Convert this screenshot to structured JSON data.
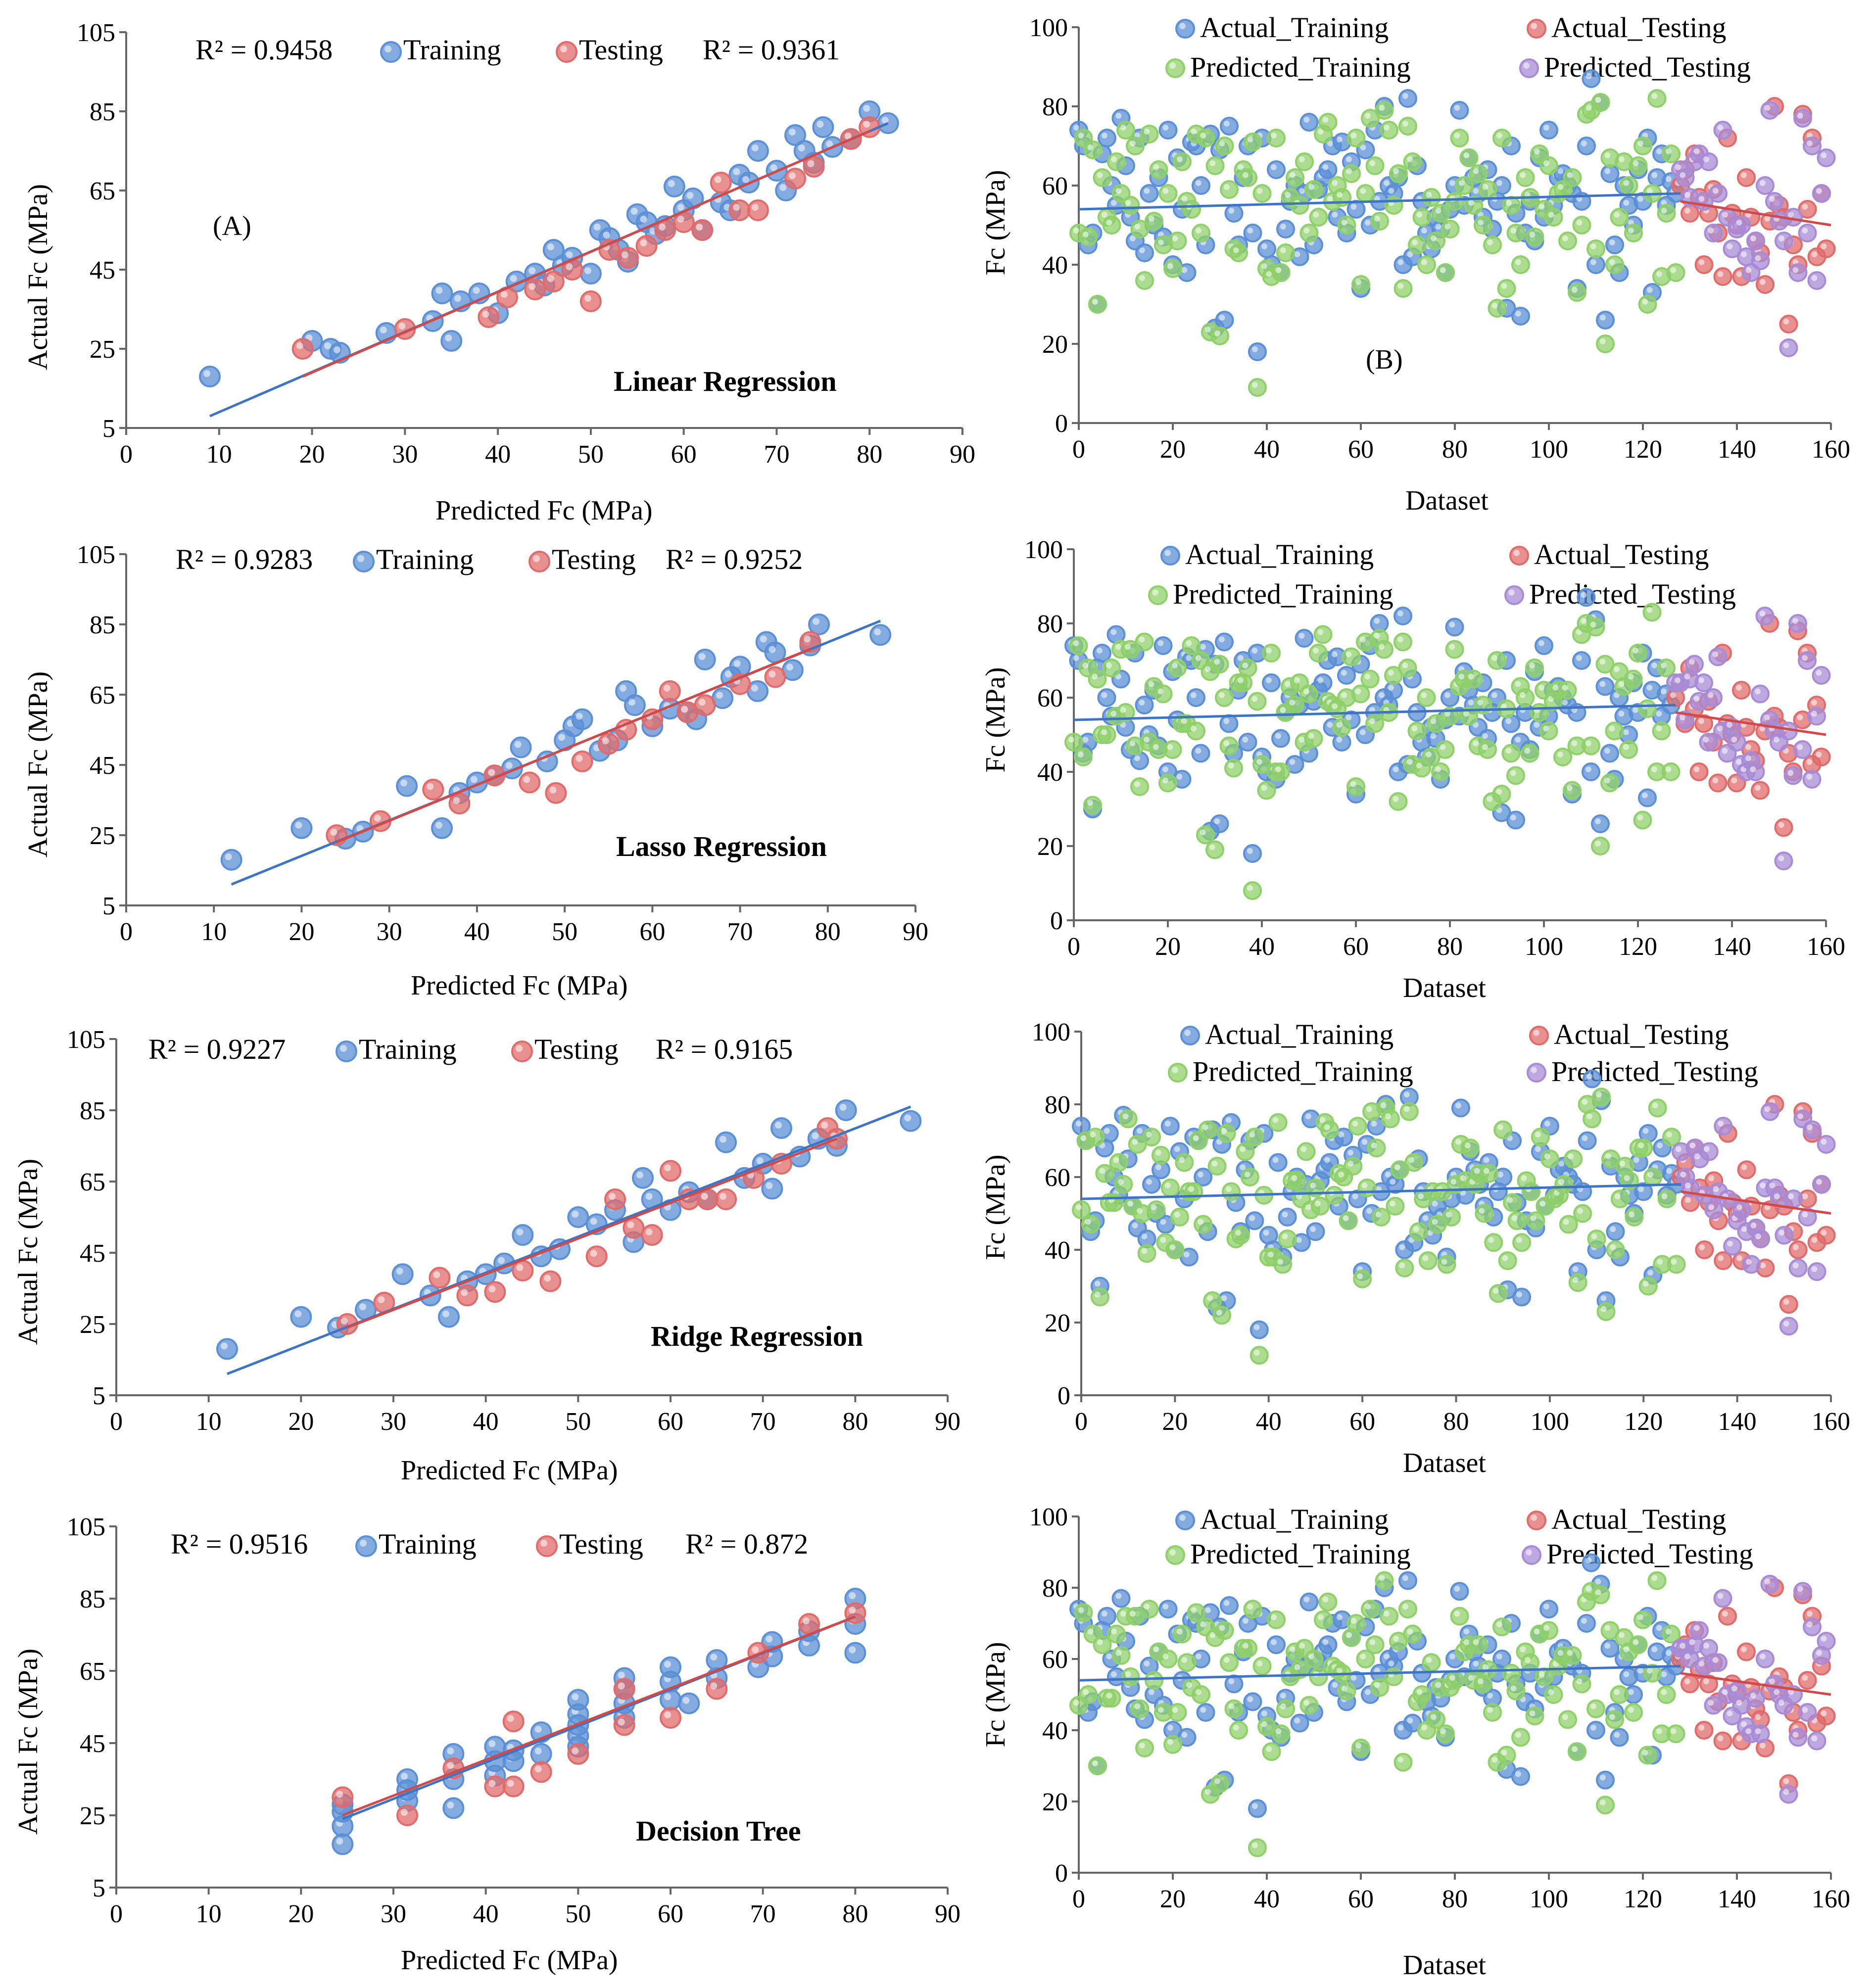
{
  "colors": {
    "training": "#5b8fd6",
    "testing": "#e06b6b",
    "predicted_training": "#8fd06a",
    "predicted_testing": "#a88bd6",
    "axis": "#666666",
    "text": "#000000"
  },
  "chart_data": [
    {
      "type": "scatter",
      "panel": "left-1",
      "title": "Linear Regression",
      "panel_label": "(A)",
      "xlabel": "Predicted Fc (MPa)",
      "ylabel": "Actual Fc (MPa)",
      "xlim": [
        0,
        90
      ],
      "ylim": [
        5,
        105
      ],
      "xticks": [
        "0",
        "10",
        "20",
        "30",
        "40",
        "50",
        "60",
        "70",
        "80",
        "90"
      ],
      "yticks": [
        "5",
        "25",
        "45",
        "65",
        "85",
        "105"
      ],
      "legend": {
        "r2_training": "R² = 0.9458",
        "training": "Training",
        "testing": "Testing",
        "r2_testing": "R² = 0.9361"
      },
      "series": [
        {
          "name": "Training",
          "x": [
            9,
            20,
            22,
            23,
            28,
            33,
            34,
            35,
            36,
            38,
            40,
            42,
            44,
            45,
            46,
            47,
            48,
            50,
            51,
            52,
            53,
            54,
            55,
            56,
            57,
            58,
            59,
            60,
            61,
            62,
            64,
            65,
            66,
            67,
            68,
            70,
            71,
            72,
            73,
            74,
            75,
            76,
            78,
            80,
            82
          ],
          "y": [
            18,
            27,
            25,
            24,
            29,
            32,
            39,
            27,
            37,
            39,
            34,
            42,
            44,
            41,
            50,
            46,
            48,
            44,
            55,
            53,
            50,
            47,
            59,
            57,
            54,
            56,
            66,
            60,
            63,
            55,
            62,
            60,
            69,
            67,
            75,
            70,
            65,
            79,
            75,
            72,
            81,
            76,
            78,
            85,
            82
          ],
          "trendline": [
            [
              9,
              8
            ],
            [
              82,
              82
            ]
          ]
        },
        {
          "name": "Testing",
          "x": [
            19,
            30,
            39,
            41,
            44,
            46,
            48,
            50,
            52,
            54,
            56,
            58,
            60,
            62,
            64,
            66,
            68,
            72,
            74,
            78,
            80
          ],
          "y": [
            25,
            30,
            33,
            38,
            40,
            42,
            45,
            37,
            50,
            48,
            51,
            55,
            57,
            55,
            67,
            60,
            60,
            68,
            71,
            78,
            81
          ],
          "trendline": [
            [
              19,
              18
            ],
            [
              80,
              80
            ]
          ]
        }
      ]
    },
    {
      "type": "scatter",
      "panel": "left-2",
      "title": "Lasso Regression",
      "xlabel": "Predicted Fc (MPa)",
      "ylabel": "Actual Fc (MPa)",
      "xlim": [
        0,
        90
      ],
      "ylim": [
        5,
        105
      ],
      "xticks": [
        "0",
        "10",
        "20",
        "30",
        "40",
        "50",
        "60",
        "70",
        "80",
        "90"
      ],
      "yticks": [
        "5",
        "25",
        "45",
        "65",
        "85",
        "105"
      ],
      "legend": {
        "r2_training": "R² = 0.9283",
        "training": "Training",
        "testing": "Testing",
        "r2_testing": "R² = 0.9252"
      },
      "series": [
        {
          "name": "Training",
          "x": [
            12,
            20,
            25,
            27,
            32,
            36,
            38,
            40,
            42,
            44,
            45,
            48,
            50,
            51,
            52,
            54,
            56,
            57,
            58,
            60,
            62,
            64,
            65,
            66,
            68,
            69,
            70,
            72,
            73,
            74,
            76,
            78,
            79,
            86
          ],
          "y": [
            18,
            27,
            24,
            26,
            39,
            27,
            37,
            40,
            42,
            44,
            50,
            46,
            52,
            56,
            58,
            49,
            52,
            66,
            62,
            56,
            61,
            60,
            58,
            75,
            64,
            70,
            73,
            66,
            80,
            77,
            72,
            79,
            85,
            82
          ],
          "trendline": [
            [
              12,
              11
            ],
            [
              86,
              86
            ]
          ]
        },
        {
          "name": "Testing",
          "x": [
            24,
            29,
            35,
            38,
            42,
            46,
            49,
            52,
            55,
            57,
            60,
            62,
            64,
            66,
            70,
            74,
            78
          ],
          "y": [
            25,
            29,
            38,
            34,
            42,
            40,
            37,
            46,
            51,
            55,
            58,
            66,
            60,
            62,
            68,
            70,
            80
          ],
          "trendline": [
            [
              24,
              23
            ],
            [
              78,
              78
            ]
          ]
        }
      ]
    },
    {
      "type": "scatter",
      "panel": "left-3",
      "title": "Ridge Regression",
      "xlabel": "Predicted Fc (MPa)",
      "ylabel": "Actual Fc (MPa)",
      "xlim": [
        0,
        90
      ],
      "ylim": [
        5,
        105
      ],
      "xticks": [
        "0",
        "10",
        "20",
        "30",
        "40",
        "50",
        "60",
        "70",
        "80",
        "90"
      ],
      "yticks": [
        "5",
        "25",
        "45",
        "65",
        "85",
        "105"
      ],
      "legend": {
        "r2_training": "R² = 0.9227",
        "training": "Training",
        "testing": "Testing",
        "r2_testing": "R² = 0.9165"
      },
      "series": [
        {
          "name": "Training",
          "x": [
            12,
            20,
            24,
            27,
            31,
            34,
            36,
            38,
            40,
            42,
            44,
            46,
            48,
            50,
            52,
            54,
            56,
            57,
            58,
            60,
            62,
            64,
            66,
            68,
            70,
            71,
            72,
            74,
            76,
            78,
            79,
            86
          ],
          "y": [
            18,
            27,
            24,
            29,
            39,
            33,
            27,
            37,
            39,
            42,
            50,
            44,
            46,
            55,
            53,
            57,
            48,
            66,
            60,
            57,
            62,
            60,
            76,
            66,
            70,
            63,
            80,
            72,
            77,
            75,
            85,
            82
          ],
          "trendline": [
            [
              12,
              11
            ],
            [
              86,
              86
            ]
          ]
        },
        {
          "name": "Testing",
          "x": [
            25,
            29,
            35,
            38,
            41,
            44,
            47,
            52,
            54,
            56,
            58,
            60,
            62,
            64,
            66,
            69,
            72,
            77,
            78
          ],
          "y": [
            25,
            31,
            38,
            33,
            34,
            40,
            37,
            44,
            60,
            52,
            50,
            68,
            60,
            60,
            60,
            66,
            70,
            80,
            77
          ],
          "trendline": [
            [
              25,
              24
            ],
            [
              78,
              77
            ]
          ]
        }
      ]
    },
    {
      "type": "scatter",
      "panel": "left-4",
      "title": "Decision Tree",
      "xlabel": "Predicted Fc (MPa)",
      "ylabel": "Actual Fc (MPa)",
      "xlim": [
        0,
        90
      ],
      "ylim": [
        5,
        105
      ],
      "xticks": [
        "0",
        "10",
        "20",
        "30",
        "40",
        "50",
        "60",
        "70",
        "80",
        "90"
      ],
      "yticks": [
        "5",
        "25",
        "45",
        "65",
        "85",
        "105"
      ],
      "legend": {
        "r2_training": "R² = 0.9516",
        "training": "Training",
        "testing": "Testing",
        "r2_testing": "R² = 0.872"
      },
      "series": [
        {
          "name": "Training",
          "x": [
            24.5,
            24.5,
            24.5,
            24.5,
            31.5,
            31.5,
            31.5,
            36.5,
            36.5,
            36.5,
            41,
            41,
            41,
            43,
            43,
            46,
            46,
            50,
            50,
            50,
            50,
            50,
            55,
            55,
            55,
            55,
            60,
            60,
            60,
            62,
            65,
            65,
            69.5,
            71,
            71,
            75,
            75,
            80,
            80,
            80
          ],
          "y": [
            17,
            22,
            26,
            28,
            29,
            32,
            35,
            27,
            35,
            42,
            36,
            40,
            44,
            40,
            43,
            42,
            48,
            44,
            47,
            50,
            53,
            57,
            52,
            56,
            60,
            63,
            57,
            62,
            66,
            56,
            63,
            68,
            66,
            69,
            73,
            72,
            76,
            70,
            78,
            85
          ],
          "trendline": [
            [
              24.5,
              24
            ],
            [
              80,
              80
            ]
          ]
        },
        {
          "name": "Testing",
          "x": [
            24.5,
            31.5,
            36.5,
            41,
            43,
            43,
            46,
            50,
            55,
            55,
            60,
            65,
            69.5,
            75,
            80
          ],
          "y": [
            30,
            25,
            38,
            33,
            33,
            51,
            37,
            42,
            50,
            60,
            52,
            60,
            70,
            78,
            81
          ],
          "trendline": [
            [
              24.5,
              25
            ],
            [
              80,
              80
            ]
          ]
        }
      ]
    },
    {
      "type": "scatter",
      "panel": "right-1",
      "panel_label": "(B)",
      "xlabel": "Dataset",
      "ylabel": "Fc (MPa)",
      "xlim": [
        0,
        160
      ],
      "ylim": [
        0,
        100
      ],
      "xticks": [
        "0",
        "20",
        "40",
        "60",
        "80",
        "100",
        "120",
        "140",
        "160"
      ],
      "yticks": [
        "0",
        "20",
        "40",
        "60",
        "80",
        "100"
      ],
      "legend": [
        "Actual_Training",
        "Actual_Testing",
        "Predicted_Training",
        "Predicted_Testing"
      ],
      "trend_training": [
        [
          0,
          54
        ],
        [
          128,
          58
        ]
      ],
      "trend_testing": [
        [
          128,
          56
        ],
        [
          160,
          50
        ]
      ]
    },
    {
      "type": "scatter",
      "panel": "right-2",
      "xlabel": "Dataset",
      "ylabel": "Fc (MPa)",
      "xlim": [
        0,
        160
      ],
      "ylim": [
        0,
        100
      ],
      "xticks": [
        "0",
        "20",
        "40",
        "60",
        "80",
        "100",
        "120",
        "140",
        "160"
      ],
      "yticks": [
        "0",
        "20",
        "40",
        "60",
        "80",
        "100"
      ],
      "legend": [
        "Actual_Training",
        "Actual_Testing",
        "Predicted_Training",
        "Predicted_Testing"
      ],
      "trend_training": [
        [
          0,
          54
        ],
        [
          128,
          58
        ]
      ],
      "trend_testing": [
        [
          128,
          56
        ],
        [
          160,
          50
        ]
      ]
    },
    {
      "type": "scatter",
      "panel": "right-3",
      "xlabel": "Dataset",
      "ylabel": "Fc (MPa)",
      "xlim": [
        0,
        160
      ],
      "ylim": [
        0,
        100
      ],
      "xticks": [
        "0",
        "20",
        "40",
        "60",
        "80",
        "100",
        "120",
        "140",
        "160"
      ],
      "yticks": [
        "0",
        "20",
        "40",
        "60",
        "80",
        "100"
      ],
      "legend": [
        "Actual_Training",
        "Actual_Testing",
        "Predicted_Training",
        "Predicted_Testing"
      ],
      "trend_training": [
        [
          0,
          54
        ],
        [
          128,
          58
        ]
      ],
      "trend_testing": [
        [
          128,
          56
        ],
        [
          160,
          50
        ]
      ]
    },
    {
      "type": "scatter",
      "panel": "right-4",
      "xlabel": "Dataset",
      "ylabel": "Fc (MPa)",
      "xlim": [
        0,
        160
      ],
      "ylim": [
        0,
        100
      ],
      "xticks": [
        "0",
        "20",
        "40",
        "60",
        "80",
        "100",
        "120",
        "140",
        "160"
      ],
      "yticks": [
        "0",
        "20",
        "40",
        "60",
        "80",
        "100"
      ],
      "legend": [
        "Actual_Training",
        "Actual_Testing",
        "Predicted_Training",
        "Predicted_Testing"
      ],
      "trend_training": [
        [
          0,
          54
        ],
        [
          128,
          58
        ]
      ],
      "trend_testing": [
        [
          128,
          56
        ],
        [
          160,
          50
        ]
      ]
    }
  ],
  "dataset_series": {
    "actual_training": [
      74,
      70,
      45,
      48,
      30,
      68,
      72,
      60,
      55,
      77,
      65,
      52,
      46,
      72,
      43,
      58,
      50,
      62,
      47,
      74,
      40,
      67,
      54,
      38,
      71,
      70,
      60,
      45,
      73,
      24,
      69,
      26,
      75,
      53,
      45,
      62,
      70,
      48,
      18,
      72,
      44,
      40,
      64,
      38,
      49,
      56,
      60,
      42,
      58,
      76,
      45,
      59,
      62,
      64,
      70,
      52,
      71,
      48,
      66,
      54,
      34,
      69,
      50,
      74,
      56,
      80,
      60,
      58,
      62,
      40,
      82,
      42,
      65,
      56,
      48,
      44,
      52,
      49,
      38,
      54,
      60,
      79,
      55,
      67,
      62,
      58,
      52,
      64,
      49,
      56,
      60,
      29,
      70,
      53,
      27,
      48,
      56,
      46,
      67,
      52,
      74,
      55,
      62,
      63,
      60,
      58,
      34,
      56,
      70,
      87,
      40,
      81,
      26,
      63,
      45,
      38,
      60,
      55,
      50,
      64,
      56,
      72,
      33,
      62,
      68,
      55,
      61,
      58
    ],
    "actual_testing": [
      60,
      64,
      53,
      68,
      57,
      40,
      53,
      59,
      48,
      37,
      72,
      53,
      50,
      37,
      62,
      52,
      46,
      43,
      35,
      51,
      80,
      55,
      52,
      25,
      45,
      40,
      78,
      54,
      72,
      42,
      58,
      44
    ],
    "predicted_training": [
      48,
      72,
      47,
      69,
      30,
      62,
      52,
      50,
      66,
      58,
      74,
      55,
      70,
      49,
      36,
      73,
      51,
      64,
      45,
      58,
      39,
      46,
      66,
      56,
      54,
      73,
      48,
      72,
      23,
      65,
      22,
      70,
      59,
      44,
      43,
      64,
      62,
      71,
      9,
      58,
      39,
      37,
      72,
      38,
      43,
      57,
      62,
      55,
      66,
      48,
      59,
      52,
      73,
      76,
      56,
      60,
      57,
      50,
      63,
      72,
      35,
      58,
      77,
      65,
      51,
      79,
      74,
      55,
      63,
      34,
      75,
      66,
      45,
      52,
      40,
      57,
      46,
      53,
      38,
      49,
      56,
      72,
      60,
      67,
      55,
      63,
      50,
      59,
      45,
      29,
      72,
      34,
      55,
      48,
      40,
      62,
      57,
      47,
      68,
      54,
      65,
      52,
      58,
      59,
      46,
      62,
      33,
      50,
      78,
      79,
      44,
      81,
      20,
      67,
      40,
      52,
      66,
      60,
      48,
      65,
      70,
      30,
      58,
      82,
      37,
      53,
      68,
      38
    ],
    "predicted_testing": [
      64,
      62,
      57,
      66,
      68,
      56,
      66,
      48,
      58,
      74,
      52,
      44,
      49,
      50,
      42,
      38,
      46,
      41,
      60,
      79,
      56,
      51,
      46,
      19,
      52,
      38,
      77,
      48,
      70,
      36,
      58,
      67
    ]
  }
}
